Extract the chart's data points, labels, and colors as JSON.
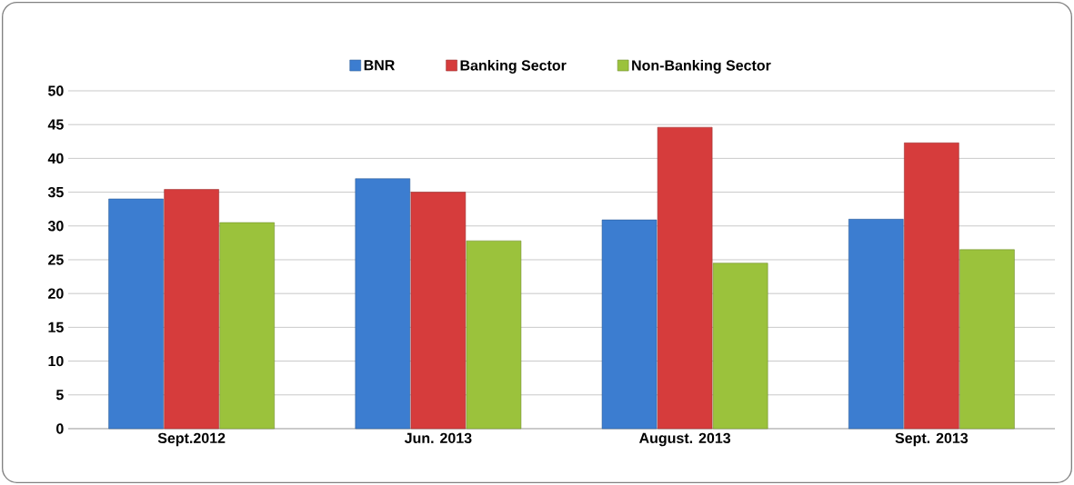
{
  "chart_data": {
    "type": "bar",
    "categories": [
      "Sept.2012",
      "Jun. 2013",
      "August. 2013",
      "Sept. 2013"
    ],
    "series": [
      {
        "name": "BNR",
        "color": "#3c7dd0",
        "values": [
          34.0,
          37.0,
          30.9,
          31.0
        ]
      },
      {
        "name": "Banking Sector",
        "color": "#d63c3c",
        "values": [
          35.4,
          35.0,
          44.6,
          42.3
        ]
      },
      {
        "name": "Non-Banking Sector",
        "color": "#9bc23c",
        "values": [
          30.5,
          27.8,
          24.5,
          26.5
        ]
      }
    ],
    "ylim": [
      0,
      50
    ],
    "yticks": [
      0,
      5,
      10,
      15,
      20,
      25,
      30,
      35,
      40,
      45,
      50
    ],
    "grid": "y",
    "legend": "top"
  }
}
